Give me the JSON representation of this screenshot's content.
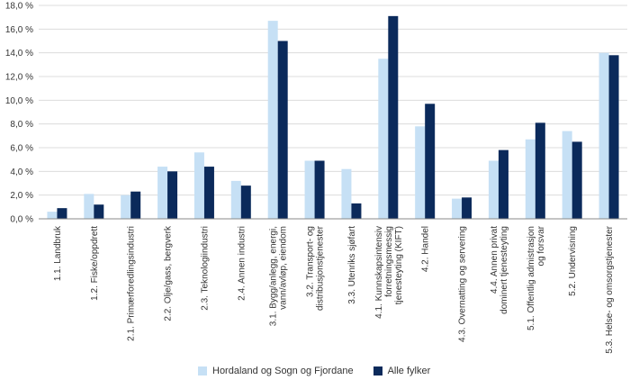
{
  "chart_data": {
    "type": "bar",
    "title": "",
    "xlabel": "",
    "ylabel": "",
    "ylim": [
      0,
      18
    ],
    "yticks": [
      0,
      2,
      4,
      6,
      8,
      10,
      12,
      14,
      16,
      18
    ],
    "ytick_labels": [
      "0,0 %",
      "2,0 %",
      "4,0 %",
      "6,0 %",
      "8,0 %",
      "10,0 %",
      "12,0 %",
      "14,0 %",
      "16,0 %",
      "18,0 %"
    ],
    "grid": true,
    "legend_position": "bottom",
    "categories": [
      [
        "1.1. Landbruk"
      ],
      [
        "1.2. Fiske/oppdrett"
      ],
      [
        "2.1. Primærforedlingsindustri"
      ],
      [
        "2.2. Olje/gass, bergverk"
      ],
      [
        "2.3. Teknologiindustri"
      ],
      [
        "2.4. Annen industri"
      ],
      [
        "3.1. Bygg/anlegg, energi,",
        "vann/avløp, eiendom"
      ],
      [
        "3.2. Transport- og",
        "distribusjonstjenester"
      ],
      [
        "3.3. Utenriks sjøfart"
      ],
      [
        "4.1. Kunnskapsintensiv",
        "forretningsmessig",
        "tjenesteyting (KIFT)"
      ],
      [
        "4.2. Handel"
      ],
      [
        "4.3. Overnatting og servering"
      ],
      [
        "4.4. Annen privat",
        "dominert tjenesteyting"
      ],
      [
        "5.1. Offentlig admistrasjon",
        "og forsvar"
      ],
      [
        "5.2. Undervisning"
      ],
      [
        "5.3. Helse- og omsorgstjenester"
      ]
    ],
    "series": [
      {
        "name": "Hordaland og Sogn og Fjordane",
        "color": "#c6e0f5",
        "values": [
          0.6,
          2.1,
          2.0,
          4.4,
          5.6,
          3.2,
          16.7,
          4.9,
          4.2,
          13.5,
          7.8,
          1.7,
          4.9,
          6.7,
          7.4,
          14.0
        ]
      },
      {
        "name": "Alle fylker",
        "color": "#0b2a5b",
        "values": [
          0.9,
          1.2,
          2.3,
          4.0,
          4.4,
          2.8,
          15.0,
          4.9,
          1.3,
          17.1,
          9.7,
          1.8,
          5.8,
          8.1,
          6.5,
          13.8
        ]
      }
    ]
  }
}
